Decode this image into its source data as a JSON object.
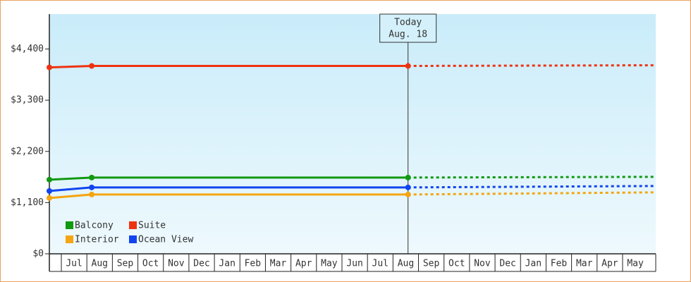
{
  "chart_data": {
    "type": "line",
    "ylim": [
      0,
      5150
    ],
    "yticks": [
      {
        "value": 0,
        "label": "$0"
      },
      {
        "value": 1100,
        "label": "$1,100"
      },
      {
        "value": 2200,
        "label": "$2,200"
      },
      {
        "value": 3300,
        "label": "$3,300"
      },
      {
        "value": 4400,
        "label": "$4,400"
      }
    ],
    "xlim": [
      -0.47,
      23.3
    ],
    "x_labels": [
      "Jul",
      "Aug",
      "Sep",
      "Oct",
      "Nov",
      "Dec",
      "Jan",
      "Feb",
      "Mar",
      "Apr",
      "May",
      "Jun",
      "Jul",
      "Aug",
      "Sep",
      "Oct",
      "Nov",
      "Dec",
      "Jan",
      "Feb",
      "Mar",
      "Apr",
      "May"
    ],
    "x": [
      -0.47,
      1.19,
      13.59
    ],
    "forecast_x": [
      13.59,
      23.3
    ],
    "annotation": {
      "x": 13.59,
      "lines": [
        "Today",
        "Aug. 18"
      ]
    },
    "legend": "lower left",
    "series": [
      {
        "name": "Balcony",
        "color": "#119911",
        "values": [
          1593,
          1638,
          1638
        ],
        "forecast": [
          1638,
          1654
        ]
      },
      {
        "name": "Suite",
        "color": "#ee3311",
        "values": [
          4005,
          4036,
          4036
        ],
        "forecast": [
          4036,
          4051
        ]
      },
      {
        "name": "Interior",
        "color": "#f5a511",
        "values": [
          1199,
          1274,
          1274
        ],
        "forecast": [
          1274,
          1320
        ]
      },
      {
        "name": "Ocean View",
        "color": "#1144ee",
        "values": [
          1350,
          1426,
          1426
        ],
        "forecast": [
          1426,
          1457
        ]
      }
    ]
  }
}
